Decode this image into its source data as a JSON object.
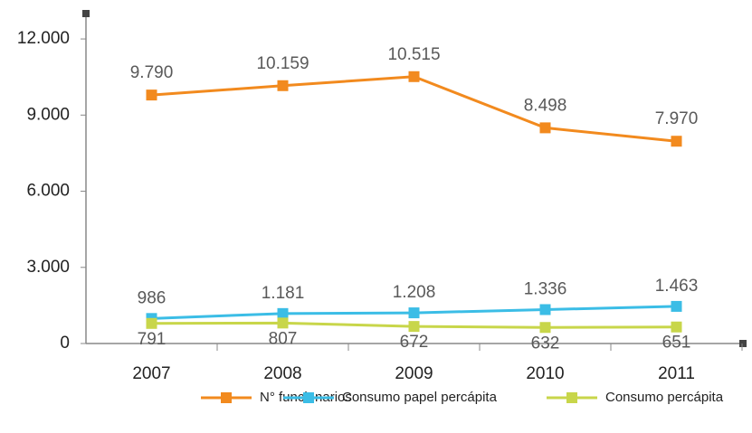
{
  "chart_data": {
    "type": "line",
    "categories": [
      "2007",
      "2008",
      "2009",
      "2010",
      "2011"
    ],
    "series": [
      {
        "name": "N° funcionarios",
        "color": "#f28a1e",
        "values": [
          9790,
          10159,
          10515,
          8498,
          7970
        ],
        "value_labels": [
          "9.790",
          "10.159",
          "10.515",
          "8.498",
          "7.970"
        ]
      },
      {
        "name": "Consumo papel percápita",
        "color": "#3bbde6",
        "values": [
          986,
          1181,
          1208,
          1336,
          1463
        ],
        "value_labels": [
          "986",
          "1.181",
          "1.208",
          "1.336",
          "1.463"
        ]
      },
      {
        "name": "Consumo percápita",
        "color": "#c8d64a",
        "values": [
          791,
          807,
          672,
          632,
          651
        ],
        "value_labels": [
          "791",
          "807",
          "672",
          "632",
          "651"
        ]
      }
    ],
    "ylim": [
      0,
      13000
    ],
    "yticks": [
      0,
      {
        "value": 3000,
        "label": "3.000"
      },
      {
        "value": 6000,
        "label": "6.000"
      },
      {
        "value": 9000,
        "label": "9.000"
      },
      {
        "value": 12000,
        "label": "12.000"
      }
    ],
    "legend": "bottom"
  }
}
